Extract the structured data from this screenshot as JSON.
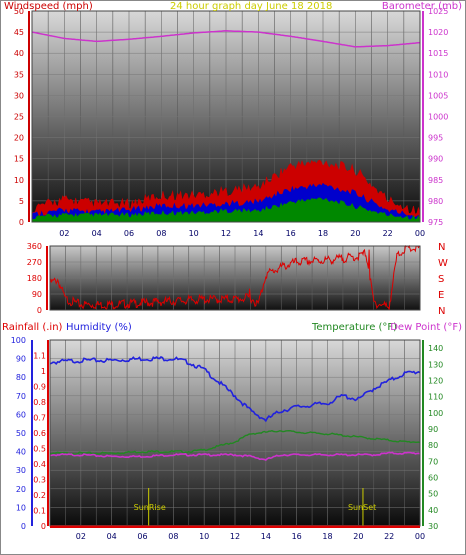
{
  "colors": {
    "wind": "#cc0000",
    "wind_avg": "#0000cc",
    "wind_lull": "#008800",
    "barometer": "#cc33cc",
    "direction": "#dd0000",
    "rainfall": "#dd0000",
    "humidity": "#2222dd",
    "temperature": "#228822",
    "dewpoint": "#cc33cc",
    "sun": "#cccc00",
    "title": "#cccc00"
  },
  "chart_data": [
    {
      "type": "line",
      "title": "24 hour graph day   June 18 2018",
      "ylabel": "Windspeed (mph)",
      "y2label": "Barometer (mb)",
      "ylim": [
        0,
        50
      ],
      "y2lim": [
        975,
        1025
      ],
      "yticks": [
        "0",
        "5",
        "10",
        "15",
        "20",
        "25",
        "30",
        "35",
        "40",
        "45",
        "50"
      ],
      "y2ticks": [
        "975",
        "980",
        "985",
        "990",
        "995",
        "1000",
        "1005",
        "1010",
        "1015",
        "1020",
        "1025"
      ],
      "xticks": [
        "02",
        "04",
        "06",
        "08",
        "10",
        "12",
        "14",
        "16",
        "18",
        "20",
        "22",
        "00"
      ],
      "x_hours": [
        0,
        2,
        4,
        6,
        8,
        10,
        12,
        14,
        16,
        18,
        20,
        22,
        24
      ],
      "series": [
        {
          "key": "barometer",
          "values": [
            1020,
            1018.5,
            1017.8,
            1018.3,
            1019,
            1019.8,
            1020.3,
            1020,
            1019,
            1017.8,
            1016.5,
            1016.8,
            1017.5
          ]
        },
        {
          "key": "wind_gust",
          "values": [
            2,
            4,
            3,
            3,
            5,
            5,
            6,
            7,
            12,
            13,
            11,
            4,
            1
          ]
        },
        {
          "key": "wind_avg",
          "values": [
            1,
            2,
            1.5,
            2,
            3,
            3,
            3.5,
            4,
            7,
            8,
            6,
            2,
            0.5
          ]
        },
        {
          "key": "wind_lull",
          "values": [
            0.5,
            1,
            1,
            1,
            1.5,
            1.5,
            2,
            2,
            4,
            5,
            3,
            1,
            0.3
          ]
        }
      ]
    },
    {
      "type": "scatter",
      "ylabel_right": [
        "N",
        "W",
        "S",
        "E",
        "N"
      ],
      "ylim": [
        0,
        360
      ],
      "yticks": [
        "0",
        "90",
        "180",
        "270",
        "360"
      ],
      "x_hours": [
        0,
        0.5,
        1,
        2,
        4,
        6,
        8,
        10,
        12,
        13,
        13.5,
        14,
        15,
        16,
        18,
        20,
        20.5,
        21,
        22,
        22.5,
        23,
        24
      ],
      "values": [
        150,
        170,
        60,
        30,
        30,
        40,
        50,
        60,
        60,
        70,
        30,
        200,
        240,
        270,
        280,
        300,
        320,
        40,
        20,
        300,
        345,
        345
      ]
    },
    {
      "type": "line",
      "ylabel": "Humidity (%)",
      "y0label": "Rainfall (.in)",
      "y2label": "Temperature (°F)",
      "y3label": "Dew Point (°F)",
      "ylim": [
        0,
        100
      ],
      "rain_lim": [
        0,
        1.2
      ],
      "y2lim": [
        30,
        145
      ],
      "yticks": [
        "0",
        "10",
        "20",
        "30",
        "40",
        "50",
        "60",
        "70",
        "80",
        "90",
        "100"
      ],
      "rain_ticks": [
        "0",
        "0.1",
        "0.2",
        "0.3",
        "0.4",
        "0.5",
        "0.6",
        "0.7",
        "0.8",
        "0.9",
        "1",
        "1.1"
      ],
      "y2ticks": [
        "30",
        "40",
        "50",
        "60",
        "70",
        "80",
        "90",
        "100",
        "110",
        "120",
        "130",
        "140"
      ],
      "xticks": [
        "02",
        "04",
        "06",
        "08",
        "10",
        "12",
        "14",
        "16",
        "18",
        "20",
        "22",
        "00"
      ],
      "x_hours": [
        0,
        2,
        4,
        6,
        8,
        9,
        10,
        12,
        13,
        14,
        15,
        16,
        18,
        19,
        20,
        21,
        22,
        23,
        24
      ],
      "series": [
        {
          "key": "humidity",
          "values": [
            88,
            89,
            89,
            90,
            90,
            88,
            84,
            70,
            62,
            57,
            62,
            64,
            66,
            70,
            68,
            74,
            78,
            82,
            83
          ]
        },
        {
          "key": "temperature",
          "values": [
            75,
            75,
            75,
            76,
            76,
            76,
            77,
            82,
            87,
            88,
            89,
            88,
            87,
            86,
            85,
            84,
            83,
            82,
            82
          ]
        },
        {
          "key": "dewpoint",
          "values": [
            74,
            74,
            73,
            73,
            74,
            74,
            74,
            74,
            73,
            71,
            74,
            74,
            74,
            74,
            74,
            74,
            75,
            75,
            75
          ]
        },
        {
          "key": "rainfall",
          "values": [
            0,
            0,
            0,
            0,
            0,
            0,
            0,
            0,
            0,
            0,
            0,
            0,
            0,
            0,
            0,
            0,
            0,
            0,
            0
          ]
        }
      ],
      "annotations": [
        {
          "label": "SunRise",
          "hour": 6.4
        },
        {
          "label": "SunSet",
          "hour": 20.3
        }
      ]
    }
  ]
}
